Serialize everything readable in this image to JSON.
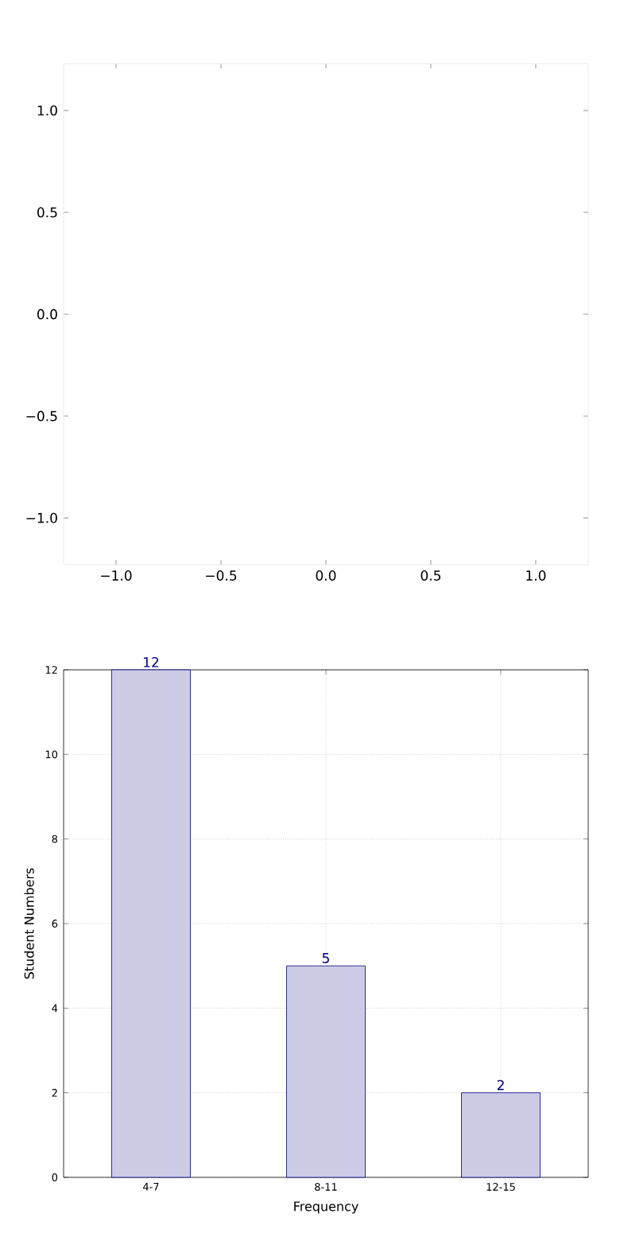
{
  "chart_data": [
    {
      "type": "scatter",
      "xlim": [
        -1.25,
        1.25
      ],
      "ylim": [
        -1.23,
        1.23
      ],
      "xticks": [
        {
          "value": -1.0,
          "label": "−1.0"
        },
        {
          "value": -0.5,
          "label": "−0.5"
        },
        {
          "value": 0.0,
          "label": "0.0"
        },
        {
          "value": 0.5,
          "label": "0.5"
        },
        {
          "value": 1.0,
          "label": "1.0"
        }
      ],
      "yticks": [
        {
          "value": -1.0,
          "label": "−1.0"
        },
        {
          "value": -0.5,
          "label": "−0.5"
        },
        {
          "value": 0.0,
          "label": "0.0"
        },
        {
          "value": 0.5,
          "label": "0.5"
        },
        {
          "value": 1.0,
          "label": "1.0"
        }
      ]
    },
    {
      "type": "bar",
      "categories": [
        "4-7",
        "8-11",
        "12-15"
      ],
      "values": [
        12,
        5,
        2
      ],
      "color": "#cccce6",
      "xlabel": "Frequency",
      "ylabel": "Student Numbers",
      "ylim": [
        0,
        12
      ],
      "yticks": [
        0,
        2,
        4,
        6,
        8,
        10,
        12
      ],
      "grid": true,
      "data_labels": true
    }
  ]
}
